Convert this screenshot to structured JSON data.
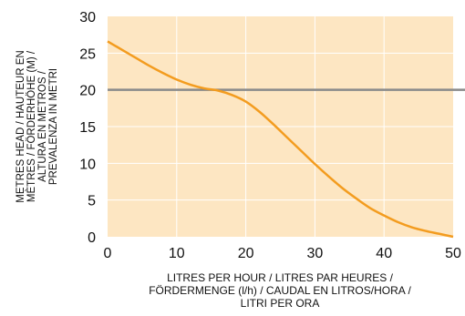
{
  "chart_data": {
    "type": "line",
    "xlabel_lines": [
      "LITRES PER HOUR / LITRES PAR HEURES /",
      "FÖRDERMENGE (l/h) / CAUDAL EN LITROS/HORA /",
      "LITRI PER ORA"
    ],
    "ylabel_lines": [
      "METRES HEAD / HAUTEUR EN",
      "MÈTRES / FÖRDERHÖHE (M) /",
      "ALTURA EN METROS /",
      "PREVALENZA IN METRI"
    ],
    "xlim": [
      0,
      50
    ],
    "ylim": [
      0,
      30
    ],
    "x_ticks": [
      0,
      10,
      20,
      30,
      40,
      50
    ],
    "y_ticks": [
      0,
      5,
      10,
      15,
      20,
      25,
      30
    ],
    "grid": true,
    "reference_line": {
      "y": 20
    },
    "series": [
      {
        "x": [
          0,
          2,
          4,
          6,
          8,
          10,
          12,
          14,
          16,
          18,
          20,
          22,
          24,
          26,
          28,
          30,
          32,
          34,
          36,
          38,
          40,
          42,
          44,
          46,
          48,
          50
        ],
        "y": [
          26.6,
          25.5,
          24.4,
          23.3,
          22.3,
          21.4,
          20.7,
          20.2,
          19.9,
          19.3,
          18.4,
          17.0,
          15.3,
          13.5,
          11.7,
          9.9,
          8.2,
          6.6,
          5.2,
          3.9,
          2.9,
          2.0,
          1.3,
          0.8,
          0.4,
          0.0
        ]
      }
    ],
    "colors": {
      "background": "#fde6c2",
      "grid": "#ffffff",
      "line": "#f39c1f",
      "reference_line": "#8a8a8a"
    }
  }
}
